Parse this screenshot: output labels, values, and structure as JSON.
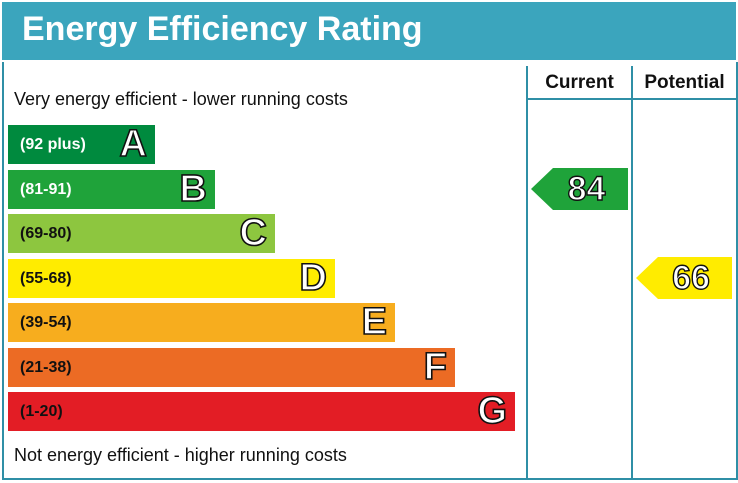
{
  "header": {
    "title": "Energy Efficiency Rating"
  },
  "columns": {
    "current": "Current",
    "potential": "Potential"
  },
  "notes": {
    "top": "Very energy efficient - lower running costs",
    "bottom": "Not energy efficient - higher running costs"
  },
  "chart_data": {
    "type": "bar",
    "title": "Energy Efficiency Rating",
    "bands": [
      {
        "letter": "A",
        "range": "(92 plus)",
        "color": "#008a3e"
      },
      {
        "letter": "B",
        "range": "(81-91)",
        "color": "#1fa33a"
      },
      {
        "letter": "C",
        "range": "(69-80)",
        "color": "#8dc63f"
      },
      {
        "letter": "D",
        "range": "(55-68)",
        "color": "#ffec00"
      },
      {
        "letter": "E",
        "range": "(39-54)",
        "color": "#f7ad1e"
      },
      {
        "letter": "F",
        "range": "(21-38)",
        "color": "#ec6b24"
      },
      {
        "letter": "G",
        "range": "(1-20)",
        "color": "#e31d25"
      }
    ],
    "current": {
      "value": "84",
      "band": "B",
      "color": "#1fa33a"
    },
    "potential": {
      "value": "66",
      "band": "D",
      "color": "#ffec00"
    }
  }
}
